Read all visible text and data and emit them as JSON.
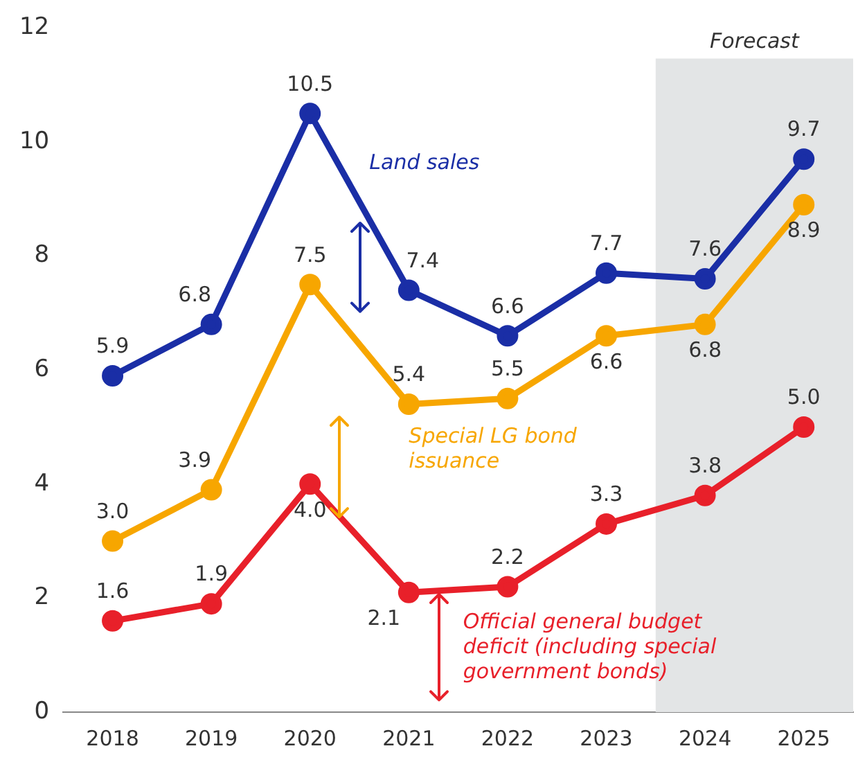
{
  "chart_data": {
    "type": "line",
    "categories": [
      "2018",
      "2019",
      "2020",
      "2021",
      "2022",
      "2023",
      "2024",
      "2025"
    ],
    "series": [
      {
        "name": "Land sales",
        "color": "#1a2ea6",
        "values": [
          5.9,
          6.8,
          10.5,
          7.4,
          6.6,
          7.7,
          7.6,
          9.7
        ],
        "value_labels": [
          "5.9",
          "6.8",
          "10.5",
          "7.4",
          "6.6",
          "7.7",
          "7.6",
          "9.7"
        ]
      },
      {
        "name": "Special LG bond issuance",
        "color": "#f7a600",
        "values": [
          3.0,
          3.9,
          7.5,
          5.4,
          5.5,
          6.6,
          6.8,
          8.9
        ],
        "value_labels": [
          "3.0",
          "3.9",
          "7.5",
          "5.4",
          "5.5",
          "6.6",
          "6.8",
          "8.9"
        ]
      },
      {
        "name": "Official general budget deficit (including special government bonds)",
        "color": "#e8202a",
        "values": [
          1.6,
          1.9,
          4.0,
          2.1,
          2.2,
          3.3,
          3.8,
          5.0
        ],
        "value_labels": [
          "1.6",
          "1.9",
          "4.0",
          "2.1",
          "2.2",
          "3.3",
          "3.8",
          "5.0"
        ]
      }
    ],
    "ylim": [
      0,
      12
    ],
    "yticks": [
      0,
      2,
      4,
      6,
      8,
      10,
      12
    ],
    "grid": false,
    "legend": false,
    "marker": "circle",
    "line_style": "solid",
    "bands": [
      {
        "axis": "x",
        "from": "2024",
        "to": "2025",
        "label": "Forecast",
        "color": "#e3e5e6"
      }
    ]
  }
}
